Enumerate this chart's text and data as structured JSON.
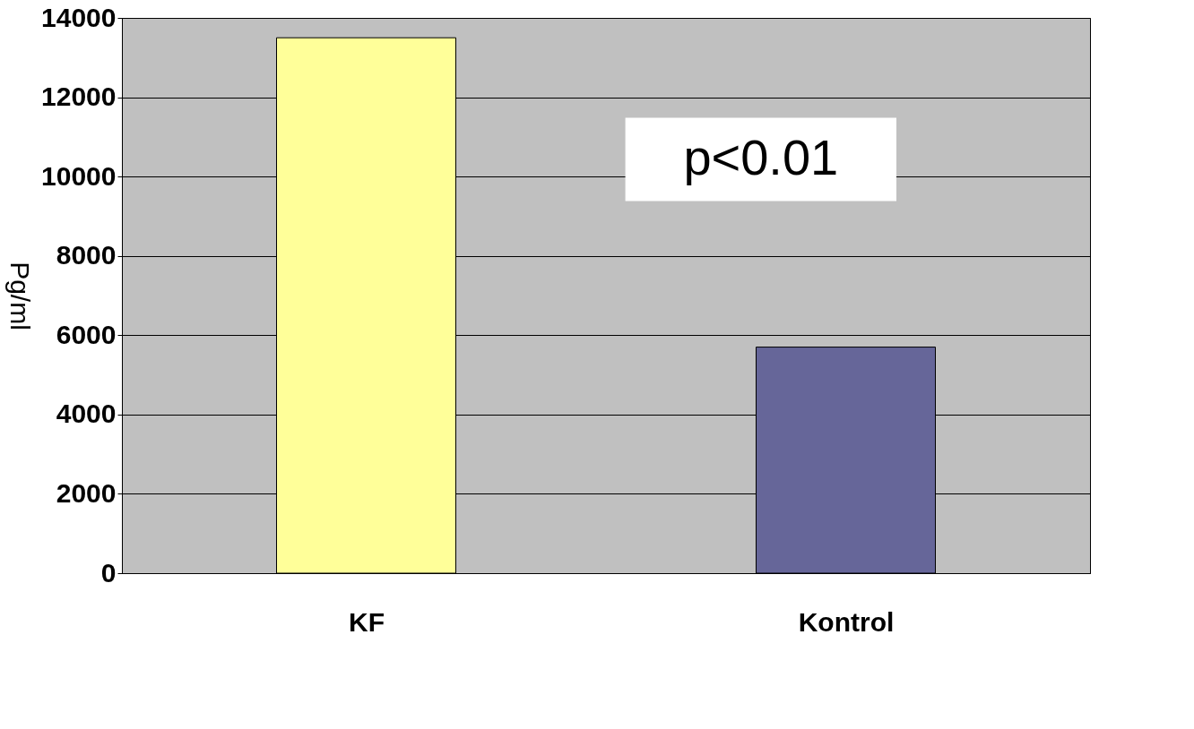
{
  "chart_data": {
    "type": "bar",
    "ylabel": "Pg/ml",
    "categories": [
      "KF",
      "Kontrol"
    ],
    "colors": [
      "#ffff99",
      "#666699"
    ],
    "values": [
      13500,
      5700
    ],
    "ylim": [
      0,
      14000
    ],
    "yticks": [
      0,
      2000,
      4000,
      6000,
      8000,
      10000,
      12000,
      14000
    ],
    "grid": "y",
    "annotations": [
      "p<0.01"
    ]
  }
}
